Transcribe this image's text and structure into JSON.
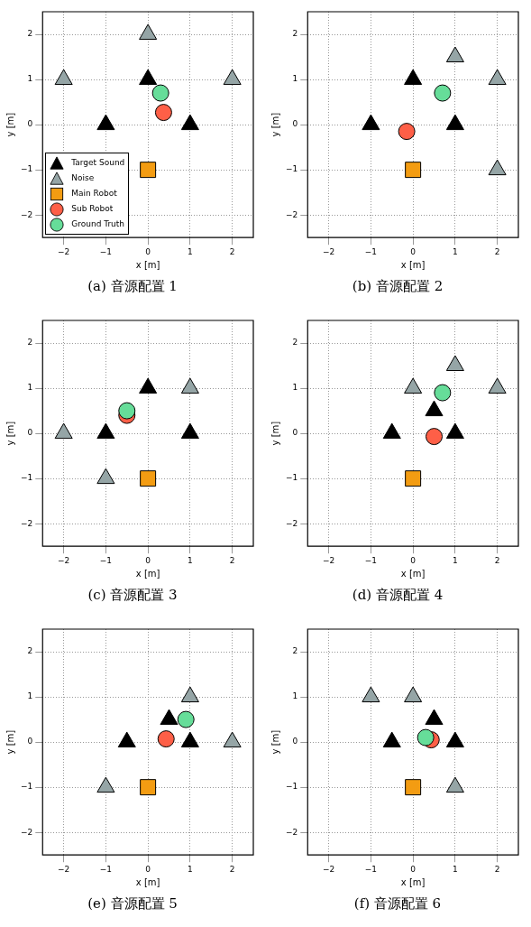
{
  "chart_data": [
    {
      "type": "scatter",
      "title": "(a) 音源配置 1",
      "xlabel": "x [m]",
      "ylabel": "y [m]",
      "xlim": [
        -2.5,
        2.5
      ],
      "ylim": [
        -2.5,
        2.5
      ],
      "xticks": [
        -2,
        -1,
        0,
        1,
        2
      ],
      "yticks": [
        -2,
        -1,
        0,
        1,
        2
      ],
      "grid": true,
      "legend": "bottom left",
      "series": [
        {
          "name": "Target Sound",
          "color": "#000000",
          "marker": "triangle",
          "x": [
            -1,
            0,
            1
          ],
          "values": [
            0,
            1,
            0
          ]
        },
        {
          "name": "Noise",
          "color": "#95a5a6",
          "marker": "triangle",
          "x": [
            -2,
            0,
            2
          ],
          "values": [
            1,
            2,
            1
          ]
        },
        {
          "name": "Main Robot",
          "color": "#f39c12",
          "marker": "square",
          "x": [
            0
          ],
          "values": [
            -1
          ]
        },
        {
          "name": "Sub Robot",
          "color": "#fe5f47",
          "marker": "circle",
          "x": [
            0.37
          ],
          "values": [
            0.27
          ]
        },
        {
          "name": "Ground Truth",
          "color": "#66dd99",
          "marker": "circle",
          "x": [
            0.3
          ],
          "values": [
            0.7
          ]
        }
      ]
    },
    {
      "type": "scatter",
      "title": "(b) 音源配置 2",
      "xlabel": "x [m]",
      "ylabel": "y [m]",
      "xlim": [
        -2.5,
        2.5
      ],
      "ylim": [
        -2.5,
        2.5
      ],
      "xticks": [
        -2,
        -1,
        0,
        1,
        2
      ],
      "yticks": [
        -2,
        -1,
        0,
        1,
        2
      ],
      "grid": true,
      "legend": false,
      "series": [
        {
          "color": "#000000",
          "marker": "triangle",
          "x": [
            -1,
            0,
            1
          ],
          "values": [
            0,
            1,
            0
          ]
        },
        {
          "color": "#95a5a6",
          "marker": "triangle",
          "x": [
            1,
            2,
            2
          ],
          "values": [
            1.5,
            1,
            -1
          ]
        },
        {
          "color": "#f39c12",
          "marker": "square",
          "x": [
            0
          ],
          "values": [
            -1
          ]
        },
        {
          "color": "#fe5f47",
          "marker": "circle",
          "x": [
            -0.15
          ],
          "values": [
            -0.15
          ]
        },
        {
          "color": "#66dd99",
          "marker": "circle",
          "x": [
            0.7
          ],
          "values": [
            0.7
          ]
        }
      ]
    },
    {
      "type": "scatter",
      "title": "(c) 音源配置 3",
      "xlabel": "x [m]",
      "ylabel": "y [m]",
      "xlim": [
        -2.5,
        2.5
      ],
      "ylim": [
        -2.5,
        2.5
      ],
      "xticks": [
        -2,
        -1,
        0,
        1,
        2
      ],
      "yticks": [
        -2,
        -1,
        0,
        1,
        2
      ],
      "grid": true,
      "legend": false,
      "series": [
        {
          "color": "#000000",
          "marker": "triangle",
          "x": [
            -1,
            0,
            1
          ],
          "values": [
            0,
            1,
            0
          ]
        },
        {
          "color": "#95a5a6",
          "marker": "triangle",
          "x": [
            -2,
            1,
            -1
          ],
          "values": [
            0,
            1,
            -1
          ]
        },
        {
          "color": "#f39c12",
          "marker": "square",
          "x": [
            0
          ],
          "values": [
            -1
          ]
        },
        {
          "color": "#fe5f47",
          "marker": "circle",
          "x": [
            -0.5
          ],
          "values": [
            0.4
          ]
        },
        {
          "color": "#66dd99",
          "marker": "circle",
          "x": [
            -0.5
          ],
          "values": [
            0.5
          ]
        }
      ]
    },
    {
      "type": "scatter",
      "title": "(d) 音源配置 4",
      "xlabel": "x [m]",
      "ylabel": "y [m]",
      "xlim": [
        -2.5,
        2.5
      ],
      "ylim": [
        -2.5,
        2.5
      ],
      "xticks": [
        -2,
        -1,
        0,
        1,
        2
      ],
      "yticks": [
        -2,
        -1,
        0,
        1,
        2
      ],
      "grid": true,
      "legend": false,
      "series": [
        {
          "color": "#000000",
          "marker": "triangle",
          "x": [
            -0.5,
            0.5,
            1
          ],
          "values": [
            0,
            0.5,
            0
          ]
        },
        {
          "color": "#95a5a6",
          "marker": "triangle",
          "x": [
            0,
            1,
            2
          ],
          "values": [
            1,
            1.5,
            1
          ]
        },
        {
          "color": "#f39c12",
          "marker": "square",
          "x": [
            0
          ],
          "values": [
            -1
          ]
        },
        {
          "color": "#fe5f47",
          "marker": "circle",
          "x": [
            0.5
          ],
          "values": [
            -0.07
          ]
        },
        {
          "color": "#66dd99",
          "marker": "circle",
          "x": [
            0.7
          ],
          "values": [
            0.9
          ]
        }
      ]
    },
    {
      "type": "scatter",
      "title": "(e) 音源配置 5",
      "xlabel": "x [m]",
      "ylabel": "y [m]",
      "xlim": [
        -2.5,
        2.5
      ],
      "ylim": [
        -2.5,
        2.5
      ],
      "xticks": [
        -2,
        -1,
        0,
        1,
        2
      ],
      "yticks": [
        -2,
        -1,
        0,
        1,
        2
      ],
      "grid": true,
      "legend": false,
      "series": [
        {
          "color": "#000000",
          "marker": "triangle",
          "x": [
            -0.5,
            0.5,
            1
          ],
          "values": [
            0,
            0.5,
            0
          ]
        },
        {
          "color": "#95a5a6",
          "marker": "triangle",
          "x": [
            1,
            2,
            -1
          ],
          "values": [
            1,
            0,
            -1
          ]
        },
        {
          "color": "#f39c12",
          "marker": "square",
          "x": [
            0
          ],
          "values": [
            -1
          ]
        },
        {
          "color": "#fe5f47",
          "marker": "circle",
          "x": [
            0.43
          ],
          "values": [
            0.07
          ]
        },
        {
          "color": "#66dd99",
          "marker": "circle",
          "x": [
            0.9
          ],
          "values": [
            0.5
          ]
        }
      ]
    },
    {
      "type": "scatter",
      "title": "(f) 音源配置 6",
      "xlabel": "x [m]",
      "ylabel": "y [m]",
      "xlim": [
        -2.5,
        2.5
      ],
      "ylim": [
        -2.5,
        2.5
      ],
      "xticks": [
        -2,
        -1,
        0,
        1,
        2
      ],
      "yticks": [
        -2,
        -1,
        0,
        1,
        2
      ],
      "grid": true,
      "legend": false,
      "series": [
        {
          "color": "#000000",
          "marker": "triangle",
          "x": [
            -0.5,
            0.5,
            1
          ],
          "values": [
            0,
            0.5,
            0
          ]
        },
        {
          "color": "#95a5a6",
          "marker": "triangle",
          "x": [
            -1,
            0,
            1
          ],
          "values": [
            1,
            1,
            -1
          ]
        },
        {
          "color": "#f39c12",
          "marker": "square",
          "x": [
            0
          ],
          "values": [
            -1
          ]
        },
        {
          "color": "#fe5f47",
          "marker": "circle",
          "x": [
            0.43
          ],
          "values": [
            0.05
          ]
        },
        {
          "color": "#66dd99",
          "marker": "circle",
          "x": [
            0.3
          ],
          "values": [
            0.1
          ]
        }
      ]
    }
  ]
}
